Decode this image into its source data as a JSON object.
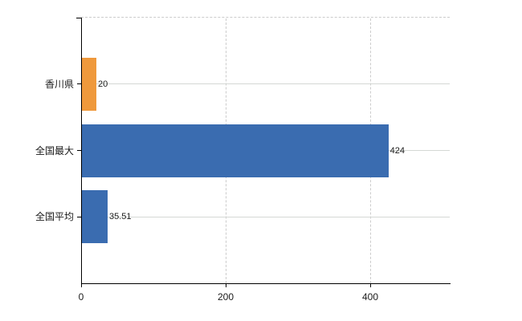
{
  "chart_data": {
    "type": "bar",
    "orientation": "horizontal",
    "title": "",
    "xlabel": "",
    "ylabel": "",
    "categories": [
      "香川県",
      "全国最大",
      "全国平均"
    ],
    "values": [
      20,
      424,
      35.51
    ],
    "value_labels": [
      "20",
      "424",
      "35.51"
    ],
    "bar_colors": [
      "#ef993c",
      "#3a6cb0",
      "#3a6cb0"
    ],
    "xlim": [
      0,
      510
    ],
    "xticks": [
      0,
      200,
      400
    ],
    "xtick_labels": [
      "0",
      "200",
      "400"
    ],
    "grid": true,
    "gridline_style": {
      "vertical": "dashed",
      "horizontal": "solid",
      "top_border": "dashed"
    },
    "legend": false
  },
  "colors": {
    "background": "#ffffff",
    "axis": "#000000",
    "grid_solid": "#d4d8d4",
    "grid_dashed": "#cccccc",
    "text": "#1a1a1a",
    "bar_orange": "#ef993c",
    "bar_blue": "#3a6cb0"
  }
}
